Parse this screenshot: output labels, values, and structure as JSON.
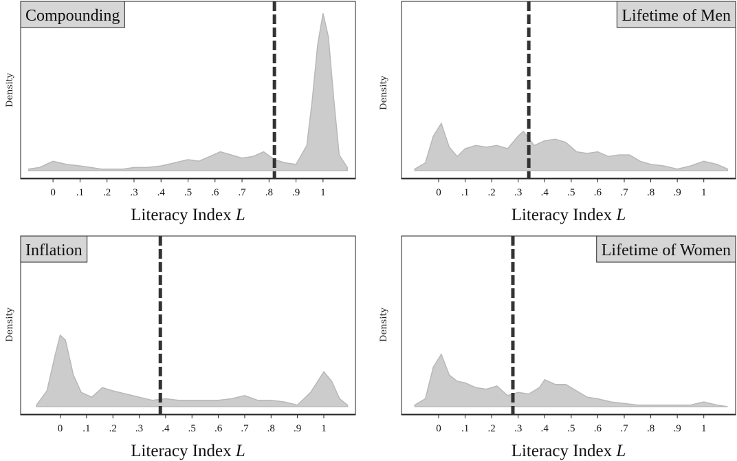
{
  "chart_data": [
    {
      "type": "area",
      "title": "Compounding",
      "title_position": "top-left",
      "xlabel": "Literacy Index",
      "xlabel_var": "L",
      "ylabel": "Density",
      "xlim": [
        -0.12,
        1.12
      ],
      "ylim": [
        0,
        1.05
      ],
      "xticks": [
        0,
        0.1,
        0.2,
        0.3,
        0.4,
        0.5,
        0.6,
        0.7,
        0.8,
        0.9,
        1
      ],
      "xtick_labels": [
        "0",
        ".1",
        ".2",
        ".3",
        ".4",
        ".5",
        ".6",
        ".7",
        ".8",
        ".9",
        "1"
      ],
      "reference_line_x": 0.82,
      "fill_color": "#cccccc",
      "line_color": "#333333",
      "x": [
        -0.09,
        -0.05,
        0,
        0.05,
        0.1,
        0.14,
        0.18,
        0.22,
        0.26,
        0.3,
        0.35,
        0.4,
        0.45,
        0.5,
        0.54,
        0.58,
        0.62,
        0.66,
        0.7,
        0.74,
        0.78,
        0.82,
        0.86,
        0.9,
        0.94,
        0.96,
        0.98,
        1.0,
        1.02,
        1.04,
        1.06,
        1.09
      ],
      "y": [
        0.01,
        0.02,
        0.06,
        0.04,
        0.03,
        0.02,
        0.01,
        0.01,
        0.01,
        0.02,
        0.02,
        0.03,
        0.05,
        0.07,
        0.06,
        0.09,
        0.12,
        0.1,
        0.08,
        0.09,
        0.12,
        0.07,
        0.05,
        0.04,
        0.16,
        0.45,
        0.8,
        1.0,
        0.85,
        0.45,
        0.1,
        0.02
      ]
    },
    {
      "type": "area",
      "title": "Lifetime of Men",
      "title_position": "top-right",
      "xlabel": "Literacy Index",
      "xlabel_var": "L",
      "ylabel": "Density",
      "xlim": [
        -0.14,
        1.12
      ],
      "ylim": [
        0,
        1.05
      ],
      "xticks": [
        0,
        0.1,
        0.2,
        0.3,
        0.4,
        0.5,
        0.6,
        0.7,
        0.8,
        0.9,
        1
      ],
      "xtick_labels": [
        "0",
        ".1",
        ".2",
        ".3",
        ".4",
        ".5",
        ".6",
        ".7",
        ".8",
        ".9",
        "1"
      ],
      "reference_line_x": 0.34,
      "fill_color": "#cccccc",
      "line_color": "#333333",
      "x": [
        -0.09,
        -0.05,
        -0.02,
        0.01,
        0.04,
        0.07,
        0.1,
        0.14,
        0.18,
        0.22,
        0.26,
        0.3,
        0.32,
        0.36,
        0.4,
        0.44,
        0.48,
        0.52,
        0.56,
        0.6,
        0.64,
        0.68,
        0.72,
        0.76,
        0.8,
        0.85,
        0.9,
        0.95,
        1.0,
        1.05,
        1.09
      ],
      "y": [
        0.01,
        0.05,
        0.22,
        0.3,
        0.15,
        0.09,
        0.14,
        0.16,
        0.15,
        0.16,
        0.14,
        0.22,
        0.25,
        0.16,
        0.19,
        0.2,
        0.18,
        0.12,
        0.11,
        0.12,
        0.09,
        0.1,
        0.1,
        0.06,
        0.04,
        0.03,
        0.01,
        0.03,
        0.06,
        0.04,
        0.01
      ]
    },
    {
      "type": "area",
      "title": "Inflation",
      "title_position": "top-left",
      "xlabel": "Literacy Index",
      "xlabel_var": "L",
      "ylabel": "Density",
      "xlim": [
        -0.15,
        1.12
      ],
      "ylim": [
        0,
        1.05
      ],
      "xticks": [
        0,
        0.1,
        0.2,
        0.3,
        0.4,
        0.5,
        0.6,
        0.7,
        0.8,
        0.9,
        1
      ],
      "xtick_labels": [
        "0",
        ".1",
        ".2",
        ".3",
        ".4",
        ".5",
        ".6",
        ".7",
        ".8",
        ".9",
        "1"
      ],
      "reference_line_x": 0.38,
      "fill_color": "#cccccc",
      "line_color": "#333333",
      "x": [
        -0.09,
        -0.05,
        -0.02,
        0.0,
        0.02,
        0.05,
        0.08,
        0.12,
        0.16,
        0.2,
        0.25,
        0.3,
        0.35,
        0.4,
        0.45,
        0.5,
        0.55,
        0.6,
        0.65,
        0.7,
        0.75,
        0.8,
        0.85,
        0.9,
        0.95,
        1.0,
        1.03,
        1.06,
        1.09
      ],
      "y": [
        0.01,
        0.1,
        0.32,
        0.45,
        0.42,
        0.2,
        0.09,
        0.06,
        0.12,
        0.1,
        0.08,
        0.06,
        0.04,
        0.05,
        0.04,
        0.04,
        0.04,
        0.04,
        0.05,
        0.07,
        0.04,
        0.04,
        0.03,
        0.01,
        0.09,
        0.22,
        0.16,
        0.05,
        0.01
      ]
    },
    {
      "type": "area",
      "title": "Lifetime of Women",
      "title_position": "top-right",
      "xlabel": "Literacy Index",
      "xlabel_var": "L",
      "ylabel": "Density",
      "xlim": [
        -0.14,
        1.12
      ],
      "ylim": [
        0,
        1.05
      ],
      "xticks": [
        0,
        0.1,
        0.2,
        0.3,
        0.4,
        0.5,
        0.6,
        0.7,
        0.8,
        0.9,
        1
      ],
      "xtick_labels": [
        "0",
        ".1",
        ".2",
        ".3",
        ".4",
        ".5",
        ".6",
        ".7",
        ".8",
        ".9",
        "1"
      ],
      "reference_line_x": 0.28,
      "fill_color": "#cccccc",
      "line_color": "#333333",
      "x": [
        -0.09,
        -0.05,
        -0.02,
        0.01,
        0.04,
        0.07,
        0.1,
        0.14,
        0.18,
        0.22,
        0.26,
        0.3,
        0.34,
        0.38,
        0.4,
        0.44,
        0.48,
        0.52,
        0.56,
        0.6,
        0.65,
        0.7,
        0.75,
        0.8,
        0.85,
        0.9,
        0.95,
        1.0,
        1.05,
        1.09
      ],
      "y": [
        0.01,
        0.05,
        0.25,
        0.33,
        0.2,
        0.16,
        0.15,
        0.12,
        0.11,
        0.13,
        0.07,
        0.09,
        0.08,
        0.12,
        0.17,
        0.14,
        0.14,
        0.1,
        0.06,
        0.05,
        0.03,
        0.02,
        0.01,
        0.01,
        0.01,
        0.01,
        0.01,
        0.03,
        0.01,
        0.0
      ]
    }
  ]
}
